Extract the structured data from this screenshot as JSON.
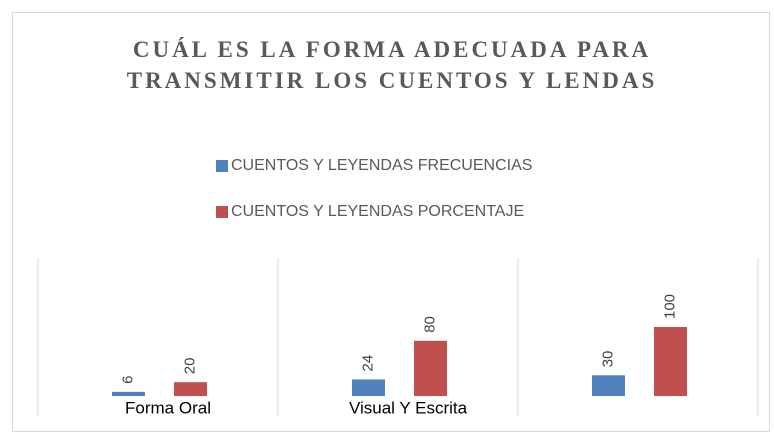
{
  "chart_data": {
    "type": "bar",
    "title": "CUÁL ES LA FORMA ADECUADA PARA TRANSMITIR LOS CUENTOS Y LENDAS",
    "categories": [
      "Forma Oral",
      "Visual Y Escrita",
      null
    ],
    "series": [
      {
        "name": "CUENTOS Y LEYENDAS FRECUENCIAS",
        "color": "#4f81bd",
        "values": [
          6,
          24,
          30
        ]
      },
      {
        "name": "CUENTOS Y LEYENDAS PORCENTAJE",
        "color": "#c0504d",
        "values": [
          20,
          80,
          100
        ]
      }
    ],
    "ylim": [
      0,
      200
    ]
  }
}
